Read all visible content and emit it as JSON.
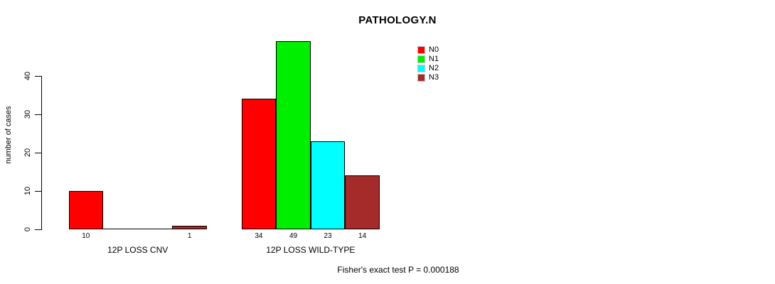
{
  "chart_data": {
    "type": "bar",
    "title": "PATHOLOGY.N",
    "ylabel": "number of cases",
    "xlabel": "",
    "yticks": [
      0,
      10,
      20,
      30,
      40
    ],
    "ylim": [
      0,
      40
    ],
    "grid": false,
    "legend_position": "top-right",
    "groups": [
      "12P LOSS CNV",
      "12P LOSS WILD-TYPE"
    ],
    "series": [
      {
        "name": "N0",
        "color": "#ff0000",
        "values": [
          10,
          34
        ]
      },
      {
        "name": "N1",
        "color": "#00ee00",
        "values": [
          0,
          49
        ]
      },
      {
        "name": "N2",
        "color": "#00ffff",
        "values": [
          0,
          23
        ]
      },
      {
        "name": "N3",
        "color": "#a52a2a",
        "values": [
          1,
          14
        ]
      }
    ],
    "bar_labels_note": "value label shown under each bar only when value > 0",
    "annotation": "Fisher's exact test P = 0.000188"
  }
}
